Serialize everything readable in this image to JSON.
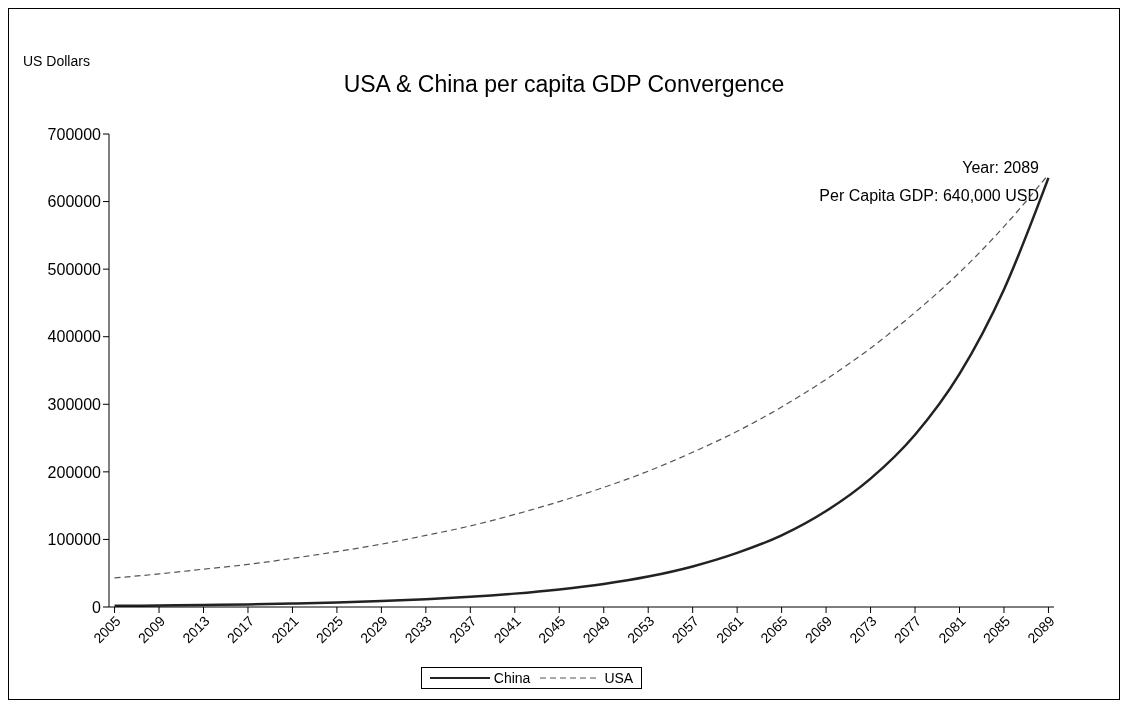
{
  "chart_data": {
    "type": "line",
    "title": "USA & China per capita GDP Convergence",
    "ylabel": "US Dollars",
    "x": [
      2005,
      2009,
      2013,
      2017,
      2021,
      2025,
      2029,
      2033,
      2037,
      2041,
      2045,
      2049,
      2053,
      2057,
      2061,
      2065,
      2069,
      2073,
      2077,
      2081,
      2085,
      2089
    ],
    "series": [
      {
        "name": "China",
        "color": "#222222",
        "line_style": "solid",
        "values": [
          1700,
          2200,
          2900,
          3800,
          5000,
          6600,
          8700,
          11400,
          15000,
          19800,
          26000,
          34000,
          45000,
          60000,
          80000,
          106000,
          142000,
          190000,
          255000,
          345000,
          470000,
          635000
        ]
      },
      {
        "name": "USA",
        "color": "#555555",
        "line_style": "dashed",
        "values": [
          43000,
          49000,
          56000,
          63000,
          72000,
          82000,
          93000,
          106000,
          120000,
          137000,
          156000,
          177000,
          201000,
          229000,
          260000,
          296000,
          337000,
          383000,
          436000,
          495000,
          563000,
          640000
        ]
      }
    ],
    "xlim": [
      2004.5,
      2089.5
    ],
    "xticks": [
      2005,
      2009,
      2013,
      2017,
      2021,
      2025,
      2029,
      2033,
      2037,
      2041,
      2045,
      2049,
      2053,
      2057,
      2061,
      2065,
      2069,
      2073,
      2077,
      2081,
      2085,
      2089
    ],
    "ylim": [
      0,
      700000
    ],
    "yticks": [
      0,
      100000,
      200000,
      300000,
      400000,
      500000,
      600000,
      700000
    ],
    "grid": false,
    "legend": "bottom",
    "marker": "none",
    "annotations": [
      "Year: 2089",
      "Per Capita GDP: 640,000 USD"
    ]
  }
}
